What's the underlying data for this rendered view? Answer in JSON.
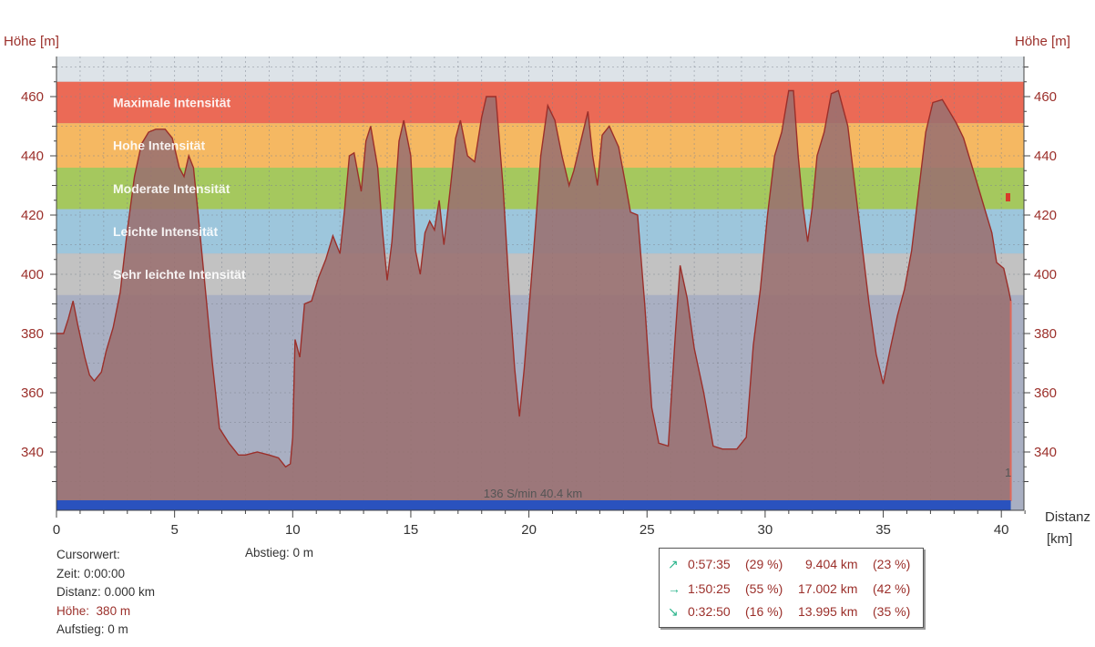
{
  "axes": {
    "y_left_title": "Höhe [m]",
    "y_right_title": "Höhe [m]",
    "x_title_line1": "Distanz",
    "x_title_line2": "[km]"
  },
  "chart_data": {
    "type": "area",
    "xlabel": "Distanz [km]",
    "ylabel": "Höhe [m]",
    "xlim": [
      0,
      41
    ],
    "ylim": [
      320,
      475
    ],
    "xticks": [
      0,
      5,
      10,
      15,
      20,
      25,
      30,
      35,
      40
    ],
    "yticks": [
      340,
      360,
      380,
      400,
      420,
      440,
      460
    ],
    "grid": true,
    "zones": [
      {
        "label": "Maximale Intensität",
        "from": 451,
        "to": 465,
        "color": "#eb6a56"
      },
      {
        "label": "Hohe Intensität",
        "from": 436,
        "to": 451,
        "color": "#f5b862"
      },
      {
        "label": "Moderate Intensität",
        "from": 422,
        "to": 436,
        "color": "#a5c85e"
      },
      {
        "label": "Leichte Intensität",
        "from": 407,
        "to": 422,
        "color": "#9dc6dc"
      },
      {
        "label": "Sehr leichte Intensität",
        "from": 393,
        "to": 407,
        "color": "#c2c2c2"
      }
    ],
    "band_label": "136 S/min 40.4 km",
    "end_marker_label": "1",
    "series": [
      {
        "fill": "#9a6f6f",
        "line": "#9b2f2a",
        "points": [
          [
            0,
            380
          ],
          [
            0.3,
            380
          ],
          [
            0.5,
            385
          ],
          [
            0.7,
            391
          ],
          [
            0.9,
            383
          ],
          [
            1.2,
            372
          ],
          [
            1.4,
            366
          ],
          [
            1.6,
            364
          ],
          [
            1.9,
            367
          ],
          [
            2.1,
            374
          ],
          [
            2.4,
            382
          ],
          [
            2.7,
            394
          ],
          [
            3.0,
            415
          ],
          [
            3.3,
            433
          ],
          [
            3.6,
            444
          ],
          [
            3.9,
            448
          ],
          [
            4.2,
            449
          ],
          [
            4.6,
            449
          ],
          [
            4.9,
            446
          ],
          [
            5.2,
            436
          ],
          [
            5.4,
            433
          ],
          [
            5.6,
            440
          ],
          [
            5.8,
            436
          ],
          [
            6.0,
            420
          ],
          [
            6.3,
            395
          ],
          [
            6.6,
            370
          ],
          [
            6.9,
            348
          ],
          [
            7.3,
            343
          ],
          [
            7.7,
            339
          ],
          [
            8.0,
            339
          ],
          [
            8.5,
            340
          ],
          [
            9.0,
            339
          ],
          [
            9.4,
            338
          ],
          [
            9.7,
            335
          ],
          [
            9.9,
            336
          ],
          [
            10.0,
            345
          ],
          [
            10.1,
            378
          ],
          [
            10.3,
            372
          ],
          [
            10.5,
            390
          ],
          [
            10.8,
            391
          ],
          [
            11.1,
            399
          ],
          [
            11.4,
            405
          ],
          [
            11.7,
            413
          ],
          [
            12.0,
            407
          ],
          [
            12.2,
            422
          ],
          [
            12.4,
            440
          ],
          [
            12.6,
            441
          ],
          [
            12.9,
            428
          ],
          [
            13.1,
            445
          ],
          [
            13.3,
            450
          ],
          [
            13.6,
            436
          ],
          [
            13.8,
            415
          ],
          [
            14.0,
            398
          ],
          [
            14.2,
            411
          ],
          [
            14.5,
            445
          ],
          [
            14.7,
            452
          ],
          [
            15.0,
            440
          ],
          [
            15.2,
            408
          ],
          [
            15.4,
            400
          ],
          [
            15.6,
            414
          ],
          [
            15.8,
            418
          ],
          [
            16.0,
            415
          ],
          [
            16.2,
            425
          ],
          [
            16.4,
            410
          ],
          [
            16.7,
            431
          ],
          [
            16.9,
            446
          ],
          [
            17.1,
            452
          ],
          [
            17.4,
            440
          ],
          [
            17.7,
            438
          ],
          [
            18.0,
            453
          ],
          [
            18.2,
            460
          ],
          [
            18.6,
            460
          ],
          [
            18.9,
            430
          ],
          [
            19.2,
            390
          ],
          [
            19.4,
            368
          ],
          [
            19.6,
            352
          ],
          [
            19.8,
            368
          ],
          [
            20.2,
            408
          ],
          [
            20.5,
            440
          ],
          [
            20.8,
            457
          ],
          [
            21.1,
            452
          ],
          [
            21.4,
            440
          ],
          [
            21.7,
            430
          ],
          [
            21.9,
            435
          ],
          [
            22.2,
            445
          ],
          [
            22.5,
            455
          ],
          [
            22.7,
            440
          ],
          [
            22.9,
            430
          ],
          [
            23.1,
            447
          ],
          [
            23.4,
            450
          ],
          [
            23.8,
            443
          ],
          [
            24.1,
            430
          ],
          [
            24.3,
            421
          ],
          [
            24.6,
            420
          ],
          [
            24.9,
            390
          ],
          [
            25.2,
            355
          ],
          [
            25.5,
            343
          ],
          [
            25.9,
            342
          ],
          [
            26.2,
            380
          ],
          [
            26.4,
            403
          ],
          [
            26.7,
            392
          ],
          [
            27.0,
            375
          ],
          [
            27.4,
            360
          ],
          [
            27.8,
            342
          ],
          [
            28.2,
            341
          ],
          [
            28.8,
            341
          ],
          [
            29.2,
            345
          ],
          [
            29.5,
            376
          ],
          [
            29.8,
            395
          ],
          [
            30.1,
            420
          ],
          [
            30.4,
            440
          ],
          [
            30.7,
            448
          ],
          [
            31.0,
            462
          ],
          [
            31.2,
            462
          ],
          [
            31.4,
            440
          ],
          [
            31.6,
            423
          ],
          [
            31.8,
            411
          ],
          [
            32.0,
            423
          ],
          [
            32.2,
            440
          ],
          [
            32.5,
            448
          ],
          [
            32.8,
            461
          ],
          [
            33.1,
            462
          ],
          [
            33.5,
            450
          ],
          [
            33.8,
            430
          ],
          [
            34.1,
            410
          ],
          [
            34.4,
            390
          ],
          [
            34.7,
            373
          ],
          [
            35.0,
            363
          ],
          [
            35.3,
            375
          ],
          [
            35.6,
            386
          ],
          [
            35.9,
            395
          ],
          [
            36.2,
            408
          ],
          [
            36.5,
            428
          ],
          [
            36.8,
            448
          ],
          [
            37.1,
            458
          ],
          [
            37.5,
            459
          ],
          [
            37.8,
            455
          ],
          [
            38.1,
            451
          ],
          [
            38.4,
            446
          ],
          [
            38.7,
            438
          ],
          [
            39.0,
            430
          ],
          [
            39.3,
            422
          ],
          [
            39.6,
            414
          ],
          [
            39.8,
            404
          ],
          [
            40.1,
            402
          ],
          [
            40.3,
            395
          ],
          [
            40.4,
            391
          ]
        ]
      }
    ]
  },
  "info": {
    "cursor_label": "Cursorwert:",
    "time": "Zeit:  0:00:00",
    "distance": "Distanz:  0.000 km",
    "altitude_label": "Höhe:",
    "altitude_value": "380 m",
    "ascent": "Aufstieg:  0 m",
    "descent": "Abstieg:  0 m"
  },
  "summary": {
    "rows": [
      {
        "icon": "↗",
        "icon_name": "uphill-arrow-icon",
        "time": "0:57:35",
        "time_pct": "(29 %)",
        "dist": "9.404 km",
        "dist_pct": "(23 %)"
      },
      {
        "icon": "→",
        "icon_name": "flat-arrow-icon",
        "time": "1:50:25",
        "time_pct": "(55 %)",
        "dist": "17.002 km",
        "dist_pct": "(42 %)"
      },
      {
        "icon": "↘",
        "icon_name": "downhill-arrow-icon",
        "time": "0:32:50",
        "time_pct": "(16 %)",
        "dist": "13.995 km",
        "dist_pct": "(35 %)"
      }
    ]
  }
}
